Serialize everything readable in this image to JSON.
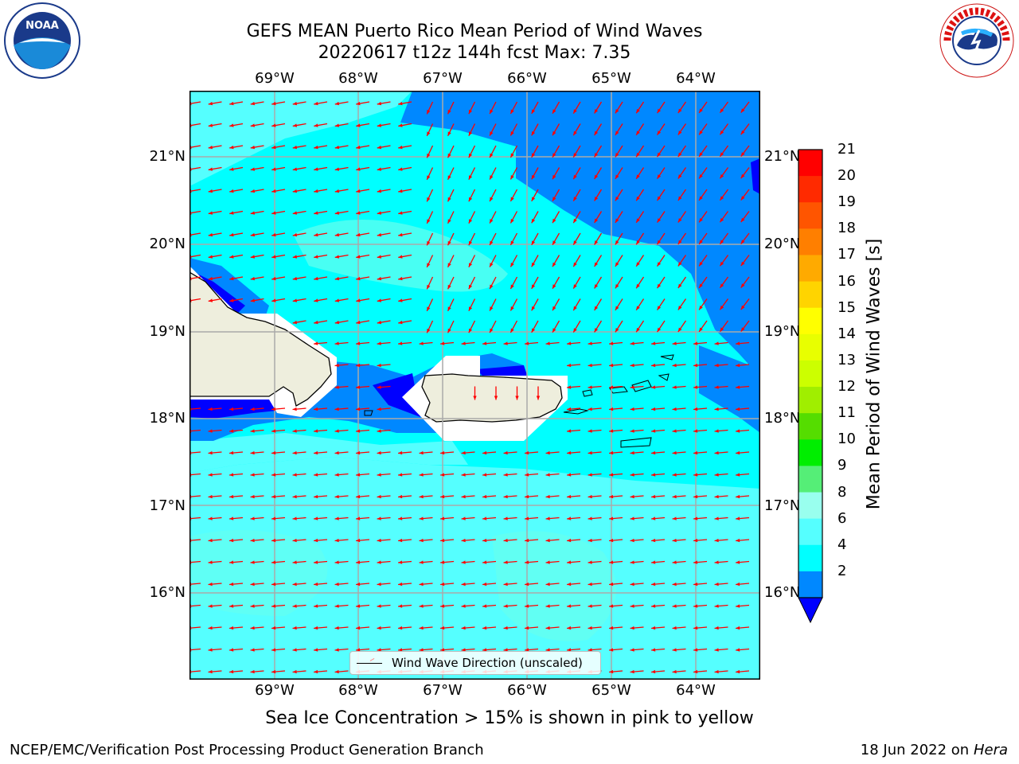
{
  "title": {
    "line1": "GEFS MEAN Puerto Rico Mean Period of Wind Waves",
    "line2": "20220617 t12z 144h fcst   Max: 7.35"
  },
  "logos": {
    "left": "NOAA",
    "right": "NATIONAL WEATHER SERVICE"
  },
  "lon_labels": [
    "69°W",
    "68°W",
    "67°W",
    "66°W",
    "65°W",
    "64°W"
  ],
  "lat_labels": [
    "21°N",
    "20°N",
    "19°N",
    "18°N",
    "17°N",
    "16°N"
  ],
  "colorbar": {
    "title": "Mean Period of Wind Waves [s]",
    "ticks": [
      "21",
      "20",
      "19",
      "18",
      "17",
      "16",
      "15",
      "14",
      "13",
      "12",
      "11",
      "10",
      "9",
      "8",
      "6",
      "4",
      "2"
    ],
    "colors": [
      "#ff0000",
      "#ff2a00",
      "#ff5500",
      "#ff7f00",
      "#ffaa00",
      "#ffd400",
      "#ffff00",
      "#e8ff00",
      "#ccff00",
      "#a0ee00",
      "#55dd00",
      "#00ee00",
      "#55ee77",
      "#99ffee",
      "#55ffff",
      "#00ffff",
      "#0088ff"
    ],
    "under_color": "#0000ff"
  },
  "map_colors": {
    "period_2_4": "#0088ff",
    "period_4_6": "#00ffff",
    "period_6_8": "#55ffff",
    "period_8_9": "#99ffee",
    "below_2": "#0000ff",
    "land": "#eeeedd",
    "arrow": "#ff0000"
  },
  "legend": {
    "label": "Wind Wave Direction (unscaled)"
  },
  "caption": "Sea Ice Concentration > 15% is shown in pink to yellow",
  "footer": {
    "left": "NCEP/EMC/Verification Post Processing Product Generation Branch",
    "right_date": "18 Jun 2022 on",
    "right_host": "Hera"
  }
}
